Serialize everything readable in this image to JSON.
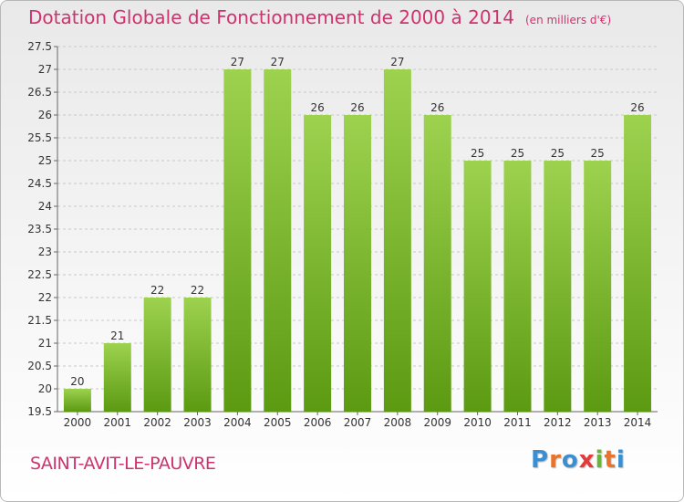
{
  "header": {
    "title": "Dotation Globale de Fonctionnement de 2000 à 2014",
    "unit": "(en milliers d'€)"
  },
  "footer": {
    "commune": "SAINT-AVIT-LE-PAUVRE",
    "logo_letters": [
      "P",
      "r",
      "o",
      "x",
      "i",
      "t",
      "i"
    ],
    "logo_colors": [
      "#3b8fd1",
      "#e8732a",
      "#3b8fd1",
      "#e23b3b",
      "#6cb33e",
      "#e8732a",
      "#3b8fd1"
    ]
  },
  "chart_data": {
    "type": "bar",
    "categories": [
      "2000",
      "2001",
      "2002",
      "2003",
      "2004",
      "2005",
      "2006",
      "2007",
      "2008",
      "2009",
      "2010",
      "2011",
      "2012",
      "2013",
      "2014"
    ],
    "values": [
      20,
      21,
      22,
      22,
      27,
      27,
      26,
      26,
      27,
      26,
      25,
      25,
      25,
      25,
      26
    ],
    "data_labels": [
      "20",
      "21",
      "22",
      "22",
      "27",
      "27",
      "26",
      "26",
      "27",
      "26",
      "25",
      "25",
      "25",
      "25",
      "26"
    ],
    "ylim": [
      19.5,
      27.5
    ],
    "yticks": [
      19.5,
      20,
      20.5,
      21,
      21.5,
      22,
      22.5,
      23,
      23.5,
      24,
      24.5,
      25,
      25.5,
      26,
      26.5,
      27,
      27.5
    ],
    "ytick_labels": [
      "19.5",
      "20",
      "20.5",
      "21",
      "21.5",
      "22",
      "22.5",
      "23",
      "23.5",
      "24",
      "24.5",
      "25",
      "25.5",
      "26",
      "26.5",
      "27",
      "27.5"
    ],
    "grid": true,
    "bar_color_top": "#9dd24f",
    "bar_color_bottom": "#5c9a12",
    "grid_color": "#c8c8c8",
    "text_color": "#333333"
  }
}
